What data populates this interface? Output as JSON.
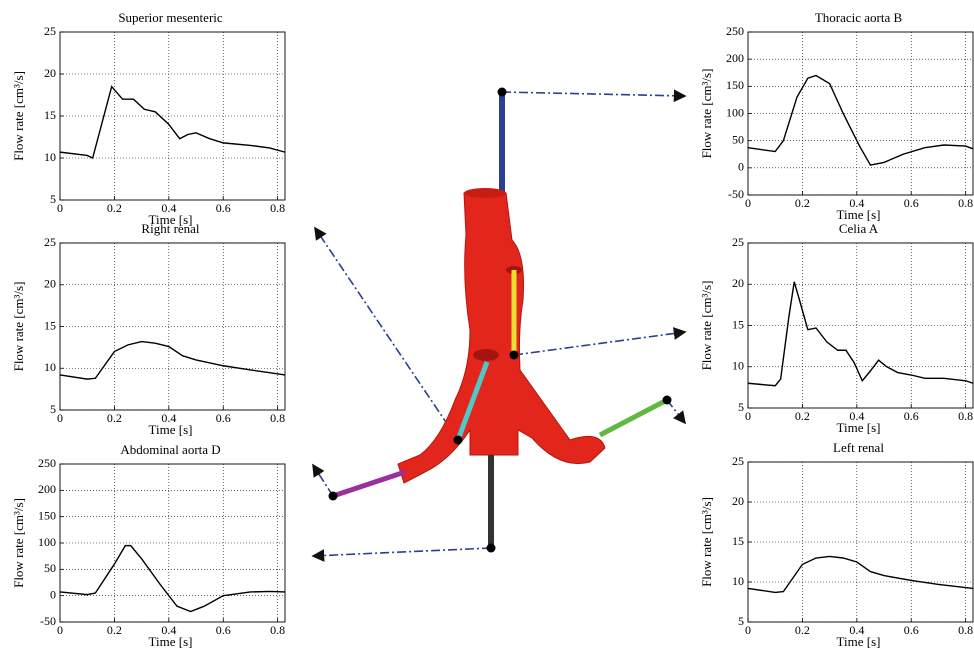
{
  "chart_data": [
    {
      "type": "line",
      "title": "Superior mesenteric",
      "xlabel": "Time [s]",
      "ylabel": "Flow rate [cm³/s]",
      "x": [
        0,
        0.1,
        0.12,
        0.19,
        0.23,
        0.27,
        0.31,
        0.35,
        0.4,
        0.44,
        0.47,
        0.5,
        0.55,
        0.6,
        0.7,
        0.77,
        0.827
      ],
      "series": [
        {
          "color": "#000000",
          "values": [
            10.7,
            10.3,
            10,
            18.5,
            17,
            17,
            15.8,
            15.5,
            14,
            12.3,
            12.8,
            13,
            12.3,
            11.8,
            11.5,
            11.2,
            10.7
          ]
        }
      ],
      "xlim": [
        0,
        0.827
      ],
      "ylim": [
        5,
        25
      ],
      "xticks": [
        0,
        0.2,
        0.4,
        0.6,
        0.8
      ],
      "yticks": [
        5,
        10,
        15,
        20,
        25
      ],
      "grid": true
    },
    {
      "type": "line",
      "title": "Thoracic aorta B",
      "xlabel": "Time [s]",
      "ylabel": "Flow rate [cm³/s]",
      "x": [
        0,
        0.1,
        0.13,
        0.18,
        0.22,
        0.25,
        0.3,
        0.35,
        0.41,
        0.45,
        0.5,
        0.57,
        0.65,
        0.72,
        0.8,
        0.827
      ],
      "series": [
        {
          "color": "#000000",
          "values": [
            37,
            30,
            50,
            130,
            165,
            170,
            155,
            100,
            40,
            5,
            10,
            25,
            37,
            42,
            40,
            35
          ]
        }
      ],
      "xlim": [
        0,
        0.827
      ],
      "ylim": [
        -50,
        250
      ],
      "xticks": [
        0,
        0.2,
        0.4,
        0.6,
        0.8
      ],
      "yticks": [
        -50,
        0,
        50,
        100,
        150,
        200,
        250
      ],
      "grid": true
    },
    {
      "type": "line",
      "title": "Right renal",
      "xlabel": "Time [s]",
      "ylabel": "Flow rate [cm³/s]",
      "x": [
        0,
        0.1,
        0.13,
        0.2,
        0.25,
        0.3,
        0.35,
        0.4,
        0.45,
        0.5,
        0.6,
        0.7,
        0.827
      ],
      "series": [
        {
          "color": "#000000",
          "values": [
            9.2,
            8.7,
            8.8,
            12,
            12.8,
            13.2,
            13,
            12.6,
            11.5,
            11,
            10.3,
            9.8,
            9.2
          ]
        }
      ],
      "xlim": [
        0,
        0.827
      ],
      "ylim": [
        5,
        25
      ],
      "xticks": [
        0,
        0.2,
        0.4,
        0.6,
        0.8
      ],
      "yticks": [
        5,
        10,
        15,
        20,
        25
      ],
      "grid": true
    },
    {
      "type": "line",
      "title": "Celia A",
      "xlabel": "Time [s]",
      "ylabel": "Flow rate [cm³/s]",
      "x": [
        0,
        0.1,
        0.12,
        0.15,
        0.17,
        0.19,
        0.22,
        0.25,
        0.29,
        0.33,
        0.36,
        0.39,
        0.42,
        0.45,
        0.48,
        0.51,
        0.55,
        0.6,
        0.65,
        0.72,
        0.8,
        0.827
      ],
      "series": [
        {
          "color": "#000000",
          "values": [
            8,
            7.7,
            8.5,
            16,
            20.3,
            18,
            14.5,
            14.7,
            13,
            12,
            12,
            10.5,
            8.3,
            9.5,
            10.8,
            10,
            9.3,
            9,
            8.6,
            8.6,
            8.3,
            8
          ]
        }
      ],
      "xlim": [
        0,
        0.827
      ],
      "ylim": [
        5,
        25
      ],
      "xticks": [
        0,
        0.2,
        0.4,
        0.6,
        0.8
      ],
      "yticks": [
        5,
        10,
        15,
        20,
        25
      ],
      "grid": true
    },
    {
      "type": "line",
      "title": "Abdominal aorta D",
      "xlabel": "Time [s]",
      "ylabel": "Flow rate [cm³/s]",
      "x": [
        0,
        0.1,
        0.13,
        0.2,
        0.24,
        0.26,
        0.3,
        0.37,
        0.43,
        0.48,
        0.53,
        0.6,
        0.7,
        0.77,
        0.827
      ],
      "series": [
        {
          "color": "#000000",
          "values": [
            7,
            2,
            5,
            60,
            95,
            95,
            70,
            20,
            -20,
            -30,
            -20,
            0,
            7,
            8,
            7
          ]
        }
      ],
      "xlim": [
        0,
        0.827
      ],
      "ylim": [
        -50,
        250
      ],
      "xticks": [
        0,
        0.2,
        0.4,
        0.6,
        0.8
      ],
      "yticks": [
        -50,
        0,
        50,
        100,
        150,
        200,
        250
      ],
      "grid": true
    },
    {
      "type": "line",
      "title": "Left renal",
      "xlabel": "Time [s]",
      "ylabel": "Flow rate [cm³/s]",
      "x": [
        0,
        0.1,
        0.13,
        0.2,
        0.25,
        0.3,
        0.35,
        0.4,
        0.45,
        0.5,
        0.6,
        0.7,
        0.827
      ],
      "series": [
        {
          "color": "#000000",
          "values": [
            9.2,
            8.7,
            8.8,
            12.2,
            13,
            13.2,
            13,
            12.5,
            11.3,
            10.8,
            10.2,
            9.7,
            9.2
          ]
        }
      ],
      "xlim": [
        0,
        0.827
      ],
      "ylim": [
        5,
        25
      ],
      "xticks": [
        0,
        0.2,
        0.4,
        0.6,
        0.8
      ],
      "yticks": [
        5,
        10,
        15,
        20,
        25
      ],
      "grid": true
    }
  ]
}
